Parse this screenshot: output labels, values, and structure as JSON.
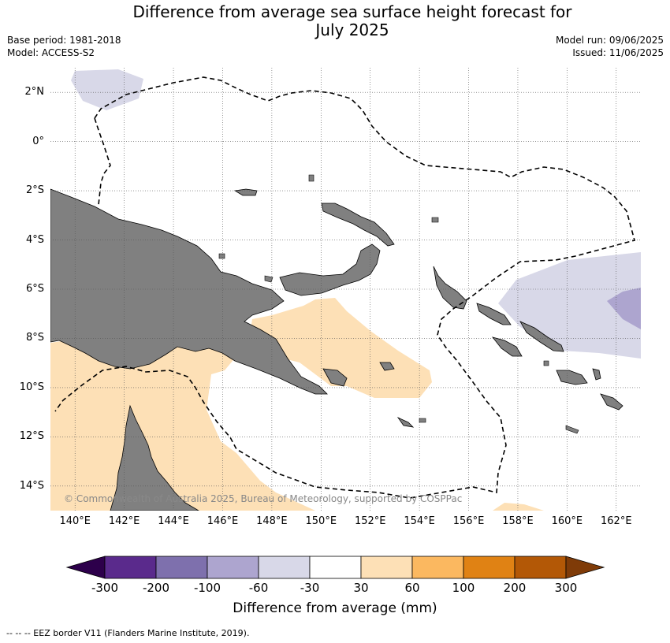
{
  "title_line1": "Difference from average sea surface height forecast for",
  "title_line2": "July 2025",
  "base_period": "Base period: 1981-2018",
  "model": "Model: ACCESS-S2",
  "model_run": "Model run: 09/06/2025",
  "issued": "Issued: 11/06/2025",
  "copyright": "© Commonwealth of Australia 2025, Bureau of Meteorology, supported by COSPPac",
  "footnote": "--  --  -- EEZ border V11 (Flanders Marine Institute, 2019).",
  "map": {
    "lat_ticks": [
      "2°N",
      "0°",
      "2°S",
      "4°S",
      "6°S",
      "8°S",
      "10°S",
      "12°S",
      "14°S"
    ],
    "lat_values": [
      2,
      0,
      -2,
      -4,
      -6,
      -8,
      -10,
      -12,
      -14
    ],
    "lon_ticks": [
      "140°E",
      "142°E",
      "144°E",
      "146°E",
      "148°E",
      "150°E",
      "152°E",
      "154°E",
      "156°E",
      "158°E",
      "160°E",
      "162°E"
    ],
    "lon_values": [
      140,
      142,
      144,
      146,
      148,
      150,
      152,
      154,
      156,
      158,
      160,
      162
    ],
    "extent": {
      "lon_min": 139,
      "lon_max": 163,
      "lat_min": -15,
      "lat_max": 3
    },
    "land_color": "#808080",
    "grid": "dotted"
  },
  "colorbar": {
    "title": "Difference from average (mm)",
    "tick_labels": [
      "-300",
      "-200",
      "-100",
      "-60",
      "-30",
      "30",
      "60",
      "100",
      "200",
      "300"
    ],
    "colors": [
      "#5a2a8c",
      "#7e70ad",
      "#ada5cf",
      "#d8d8e8",
      "#ffffff",
      "#fde0b6",
      "#fbb860",
      "#e08214",
      "#b35806"
    ],
    "extend_low_color": "#2d004b",
    "extend_high_color": "#7f3b08"
  }
}
